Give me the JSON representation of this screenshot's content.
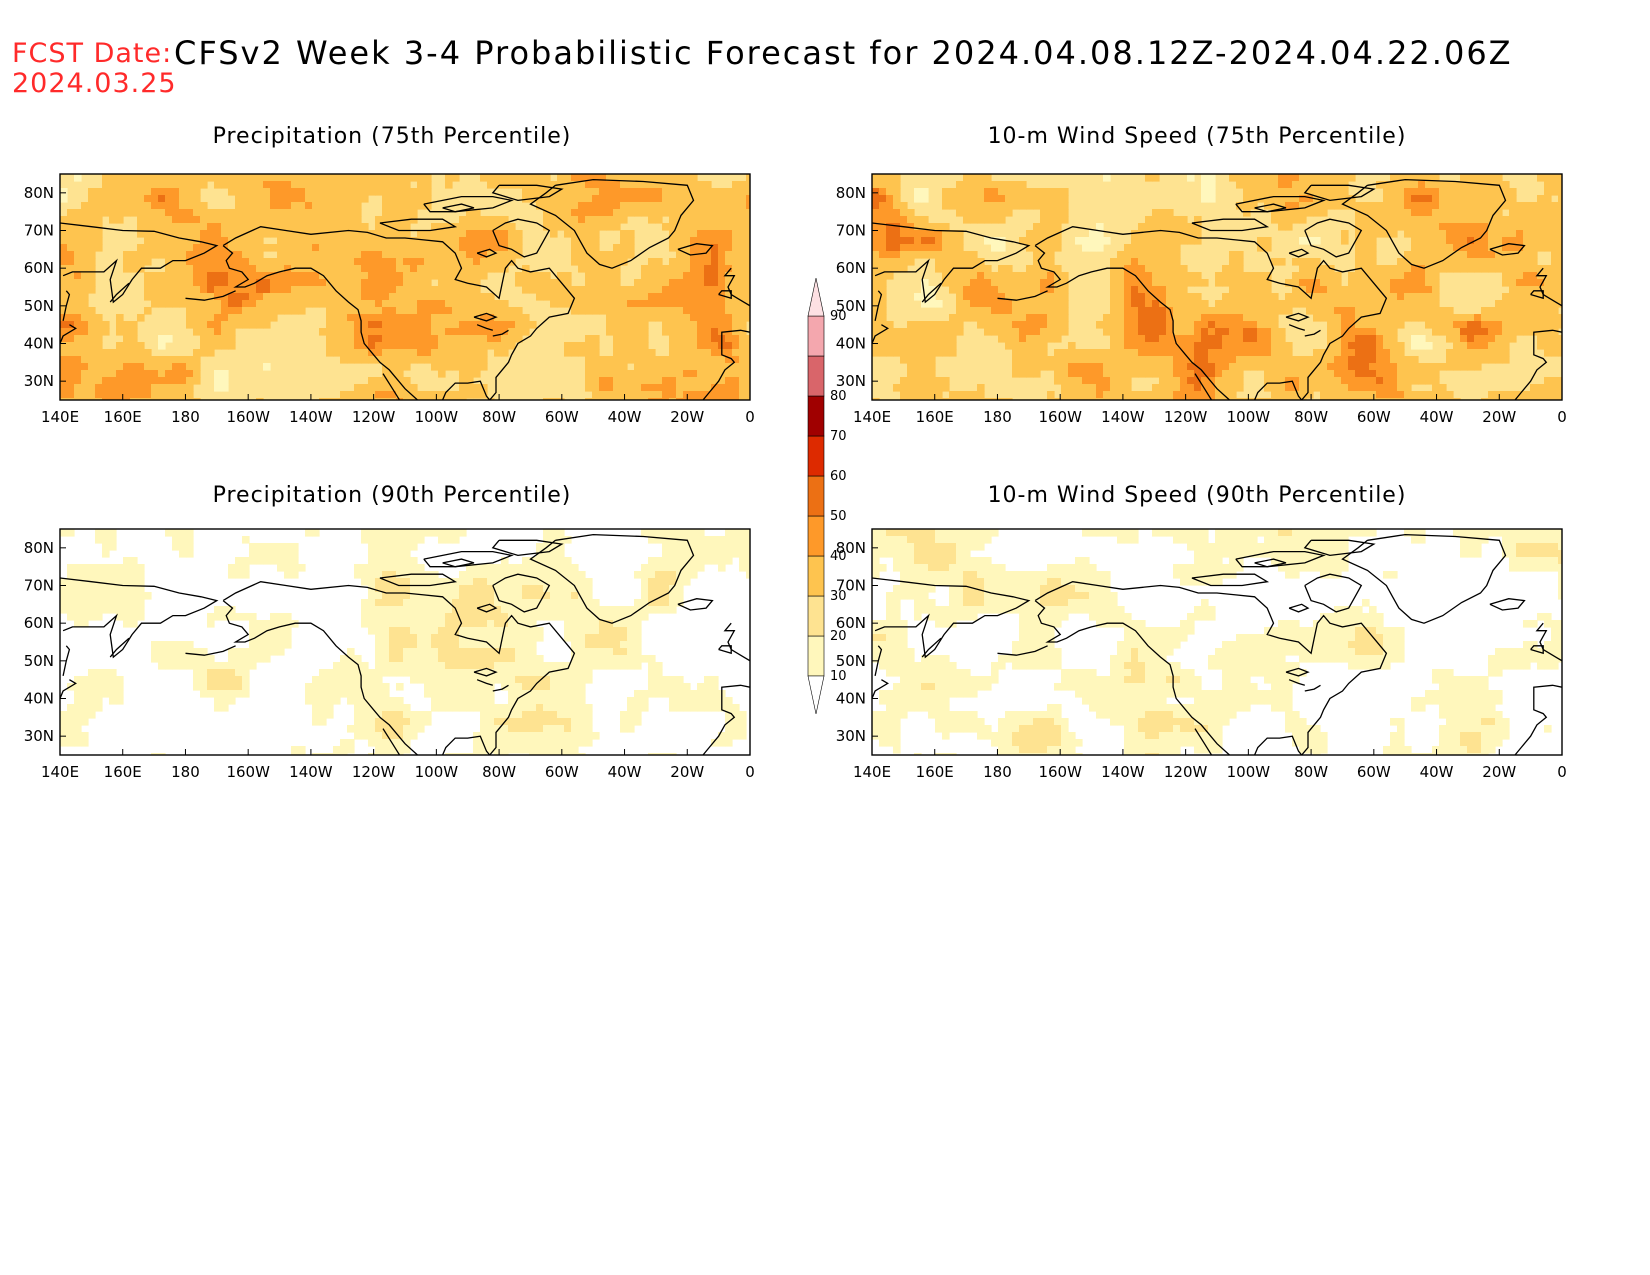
{
  "header": {
    "fcst_label": "FCST Date:",
    "fcst_date": "2024.03.25",
    "title": "CFSv2 Week 3-4 Probabilistic Forecast for 2024.04.08.12Z-2024.04.22.06Z"
  },
  "axes": {
    "lon_ticks": [
      "140E",
      "160E",
      "180",
      "160W",
      "140W",
      "120W",
      "100W",
      "80W",
      "60W",
      "40W",
      "20W",
      "0"
    ],
    "lat_ticks": [
      "80N",
      "70N",
      "60N",
      "50N",
      "40N",
      "30N"
    ],
    "lon_range": [
      140,
      360
    ],
    "lat_range": [
      25,
      85
    ]
  },
  "colorbar": {
    "levels": [
      "10",
      "20",
      "30",
      "40",
      "50",
      "60",
      "70",
      "80",
      "90"
    ],
    "colors": [
      "#fff7bc",
      "#fee391",
      "#fec44f",
      "#fe9929",
      "#ec7014",
      "#dd2a00",
      "#a00000",
      "#d9656a",
      "#f4a7ae"
    ]
  },
  "panels": [
    {
      "id": "precip-75",
      "title": "Precipitation (75th Percentile)",
      "base_level": 1
    },
    {
      "id": "wind-75",
      "title": "10-m Wind Speed (75th Percentile)",
      "base_level": 1
    },
    {
      "id": "precip-90",
      "title": "Precipitation (90th Percentile)",
      "base_level": -1
    },
    {
      "id": "wind-90",
      "title": "10-m Wind Speed (90th Percentile)",
      "base_level": -1
    }
  ]
}
